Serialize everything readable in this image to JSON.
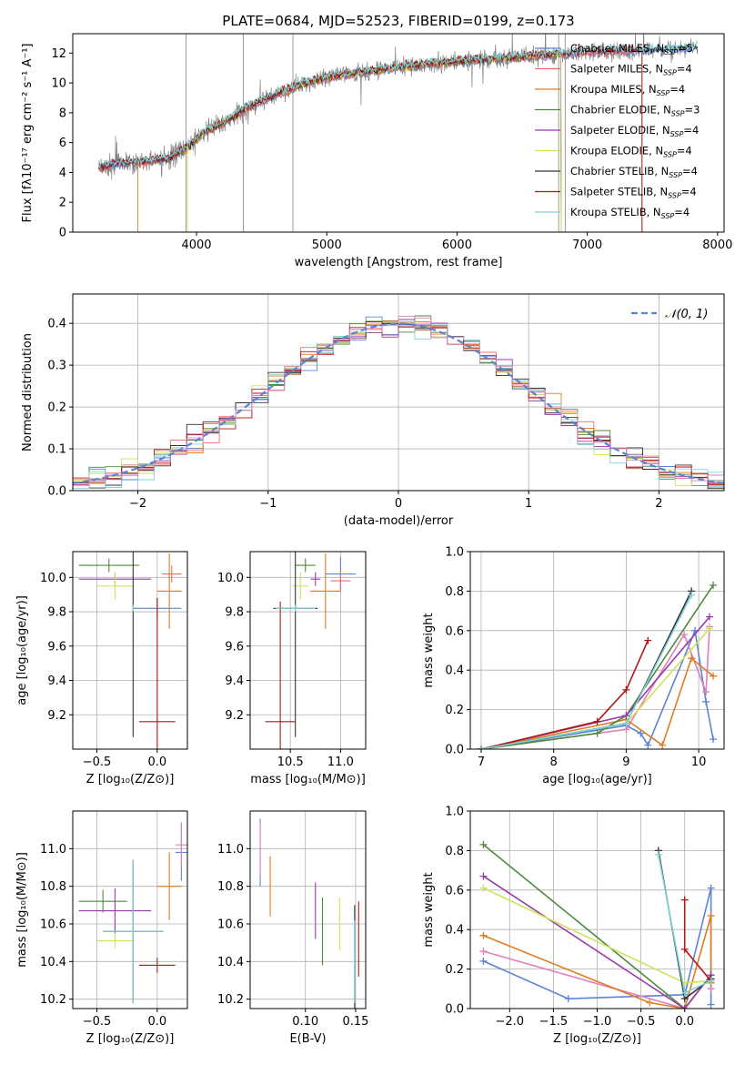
{
  "colors": {
    "chabrier_miles": "#5b84d6",
    "salpeter_miles": "#f06a6a",
    "kroupa_miles": "#e07b22",
    "chabrier_elodie": "#4f8a3c",
    "salpeter_elodie": "#9a3aaa",
    "kroupa_elodie": "#d2e05a",
    "chabrier_stelib": "#333333",
    "salpeter_stelib": "#b01818",
    "kroupa_stelib": "#7fd4d8",
    "pink": "#e07fb8",
    "normal_dash": "#5b84d6",
    "spectrum": "#808080"
  },
  "chart_data": [
    {
      "id": "spectrum",
      "type": "line",
      "title": "PLATE=0684, MJD=52523, FIBERID=0199, z=0.173",
      "xlabel": "wavelength [Angstrom, rest frame]",
      "ylabel": "Flux [fλ10⁻¹⁷ erg cm⁻² s⁻¹ A⁻¹]",
      "xlim": [
        3050,
        8050
      ],
      "ylim": [
        0,
        13.3
      ],
      "xticks": [
        4000,
        5000,
        6000,
        7000,
        8000
      ],
      "yticks": [
        0,
        2,
        4,
        6,
        8,
        10,
        12
      ],
      "grid": false,
      "legend_position": "top-right",
      "legend": [
        "Chabrier MILES, N_SSP=5",
        "Salpeter MILES, N_SSP=4",
        "Kroupa MILES, N_SSP=4",
        "Chabrier ELODIE, N_SSP=3",
        "Salpeter ELODIE, N_SSP=4",
        "Kroupa ELODIE, N_SSP=4",
        "Chabrier STELIB, N_SSP=4",
        "Salpeter STELIB, N_SSP=4",
        "Kroupa STELIB, N_SSP=4"
      ],
      "continuum": [
        [
          3250,
          4.3
        ],
        [
          3400,
          4.6
        ],
        [
          3600,
          4.7
        ],
        [
          3800,
          5.0
        ],
        [
          3950,
          5.8
        ],
        [
          4050,
          6.7
        ],
        [
          4200,
          7.3
        ],
        [
          4400,
          8.4
        ],
        [
          4600,
          9.2
        ],
        [
          4800,
          9.9
        ],
        [
          5000,
          10.4
        ],
        [
          5400,
          10.9
        ],
        [
          5800,
          11.3
        ],
        [
          6200,
          11.6
        ],
        [
          6600,
          11.8
        ],
        [
          7000,
          12.1
        ],
        [
          7400,
          12.2
        ],
        [
          7700,
          12.3
        ],
        [
          7850,
          12.4
        ]
      ]
    },
    {
      "id": "residuals",
      "type": "line",
      "title": "",
      "xlabel": "(data-model)/error",
      "ylabel": "Normed distribution",
      "xlim": [
        -2.5,
        2.5
      ],
      "ylim": [
        0,
        0.47
      ],
      "xticks": [
        -2,
        -1,
        0,
        1,
        2
      ],
      "yticks": [
        0.0,
        0.1,
        0.2,
        0.3,
        0.4
      ],
      "grid": true,
      "legend_position": "top-right",
      "legend": [
        "𝒩(0, 1)"
      ]
    },
    {
      "id": "age_vs_Z",
      "type": "scatter",
      "xlabel": "Z [log₁₀(Z/Z⊙)]",
      "ylabel": "age  [log₁₀(age/yr)]",
      "xlim": [
        -0.7,
        0.25
      ],
      "ylim": [
        9.0,
        10.15
      ],
      "xticks": [
        -0.5,
        0.0
      ],
      "yticks": [
        9.2,
        9.4,
        9.6,
        9.8,
        10.0
      ],
      "grid": true,
      "points": [
        {
          "series": "chabrier_miles",
          "x": 0.0,
          "y": 9.82,
          "xerr": 0.2,
          "yerr": 0.06
        },
        {
          "series": "salpeter_miles",
          "x": 0.12,
          "y": 10.02,
          "xerr": 0.08,
          "yerr": 0.05
        },
        {
          "series": "kroupa_miles",
          "x": 0.1,
          "y": 9.92,
          "xerr": 0.1,
          "yerr": 0.22
        },
        {
          "series": "chabrier_elodie",
          "x": -0.4,
          "y": 10.07,
          "xerr": 0.25,
          "yerr": 0.04
        },
        {
          "series": "salpeter_elodie",
          "x": -0.35,
          "y": 9.99,
          "xerr": 0.3,
          "yerr": 0.04
        },
        {
          "series": "kroupa_elodie",
          "x": -0.35,
          "y": 9.95,
          "xerr": 0.15,
          "yerr": 0.08
        },
        {
          "series": "chabrier_stelib",
          "x": -0.2,
          "y": 9.82,
          "xerr": 0.0,
          "yerr": 0.75
        },
        {
          "series": "salpeter_stelib",
          "x": 0.0,
          "y": 9.16,
          "xerr": 0.15,
          "yerr": 0.72
        },
        {
          "series": "kroupa_stelib",
          "x": -0.2,
          "y": 9.82,
          "xerr": 0.0,
          "yerr": 0.02
        }
      ]
    },
    {
      "id": "age_vs_mass",
      "type": "scatter",
      "xlabel": "mass [log₁₀(M/M⊙)]",
      "ylabel": "",
      "xlim": [
        10.1,
        11.25
      ],
      "ylim": [
        9.0,
        10.15
      ],
      "xticks": [
        10.5,
        11.0
      ],
      "yticks": [
        9.2,
        9.4,
        9.6,
        9.8,
        10.0
      ],
      "grid": true,
      "points": [
        {
          "series": "chabrier_miles",
          "x": 11.0,
          "y": 10.02,
          "xerr": 0.15,
          "yerr": 0.1
        },
        {
          "series": "salpeter_miles",
          "x": 11.0,
          "y": 9.98,
          "xerr": 0.1,
          "yerr": 0.05
        },
        {
          "series": "kroupa_miles",
          "x": 10.85,
          "y": 9.92,
          "xerr": 0.15,
          "yerr": 0.22
        },
        {
          "series": "chabrier_elodie",
          "x": 10.65,
          "y": 10.07,
          "xerr": 0.1,
          "yerr": 0.04
        },
        {
          "series": "salpeter_elodie",
          "x": 10.75,
          "y": 9.99,
          "xerr": 0.05,
          "yerr": 0.04
        },
        {
          "series": "kroupa_elodie",
          "x": 10.6,
          "y": 9.95,
          "xerr": 0.08,
          "yerr": 0.08
        },
        {
          "series": "chabrier_stelib",
          "x": 10.55,
          "y": 9.82,
          "xerr": 0.22,
          "yerr": 0.75
        },
        {
          "series": "salpeter_stelib",
          "x": 10.4,
          "y": 9.16,
          "xerr": 0.15,
          "yerr": 0.7
        },
        {
          "series": "kroupa_stelib",
          "x": 10.55,
          "y": 9.82,
          "xerr": 0.2,
          "yerr": 0.02
        }
      ]
    },
    {
      "id": "massweight_vs_age",
      "type": "line",
      "xlabel": "age  [log₁₀(age/yr)]",
      "ylabel": "mass weight",
      "xlim": [
        6.85,
        10.35
      ],
      "ylim": [
        0,
        1.0
      ],
      "xticks": [
        7,
        8,
        9,
        10
      ],
      "yticks": [
        0.0,
        0.2,
        0.4,
        0.6,
        0.8,
        1.0
      ],
      "grid": true,
      "series": [
        {
          "key": "chabrier_miles",
          "x": [
            7.0,
            9.0,
            9.2,
            9.3,
            9.95,
            10.1,
            10.2
          ],
          "y": [
            0.0,
            0.12,
            0.08,
            0.02,
            0.6,
            0.24,
            0.05
          ]
        },
        {
          "key": "pink",
          "x": [
            7.0,
            9.0,
            9.8,
            10.1,
            10.15
          ],
          "y": [
            0.0,
            0.1,
            0.58,
            0.29,
            0.62
          ]
        },
        {
          "key": "kroupa_miles",
          "x": [
            7.0,
            9.0,
            9.5,
            9.9,
            10.2
          ],
          "y": [
            0.0,
            0.15,
            0.02,
            0.46,
            0.37
          ]
        },
        {
          "key": "chabrier_elodie",
          "x": [
            7.0,
            8.6,
            9.0,
            10.2
          ],
          "y": [
            0.0,
            0.08,
            0.17,
            0.83
          ]
        },
        {
          "key": "salpeter_elodie",
          "x": [
            7.0,
            9.0,
            10.15
          ],
          "y": [
            0.0,
            0.17,
            0.67
          ]
        },
        {
          "key": "kroupa_elodie",
          "x": [
            7.0,
            9.0,
            10.15
          ],
          "y": [
            0.0,
            0.13,
            0.61
          ]
        },
        {
          "key": "chabrier_stelib",
          "x": [
            7.0,
            9.0,
            9.9
          ],
          "y": [
            0.0,
            0.13,
            0.8
          ]
        },
        {
          "key": "salpeter_stelib",
          "x": [
            7.0,
            8.6,
            9.0,
            9.3
          ],
          "y": [
            0.0,
            0.14,
            0.3,
            0.55
          ]
        },
        {
          "key": "kroupa_stelib",
          "x": [
            7.0,
            9.0,
            9.9
          ],
          "y": [
            0.0,
            0.13,
            0.78
          ]
        }
      ]
    },
    {
      "id": "mass_vs_Z",
      "type": "scatter",
      "xlabel": "Z [log₁₀(Z/Z⊙)]",
      "ylabel": "mass [log₁₀(M/M⊙)]",
      "xlim": [
        -0.7,
        0.25
      ],
      "ylim": [
        10.15,
        11.2
      ],
      "xticks": [
        -0.5,
        0.0
      ],
      "yticks": [
        10.2,
        10.4,
        10.6,
        10.8,
        11.0
      ],
      "grid": true,
      "points": [
        {
          "series": "chabrier_miles",
          "x": 0.2,
          "y": 10.98,
          "xerr": 0.05,
          "yerr": 0.15
        },
        {
          "series": "pink",
          "x": 0.2,
          "y": 11.02,
          "xerr": 0.05,
          "yerr": 0.12
        },
        {
          "series": "kroupa_miles",
          "x": 0.1,
          "y": 10.8,
          "xerr": 0.1,
          "yerr": 0.18
        },
        {
          "series": "chabrier_elodie",
          "x": -0.45,
          "y": 10.72,
          "xerr": 0.2,
          "yerr": 0.06
        },
        {
          "series": "salpeter_elodie",
          "x": -0.35,
          "y": 10.67,
          "xerr": 0.3,
          "yerr": 0.12
        },
        {
          "series": "kroupa_elodie",
          "x": -0.35,
          "y": 10.51,
          "xerr": 0.15,
          "yerr": 0.04
        },
        {
          "series": "chabrier_stelib",
          "x": -0.2,
          "y": 10.56,
          "xerr": 0.25,
          "yerr": 0.38
        },
        {
          "series": "salpeter_stelib",
          "x": 0.0,
          "y": 10.38,
          "xerr": 0.15,
          "yerr": 0.04
        },
        {
          "series": "kroupa_stelib",
          "x": -0.2,
          "y": 10.56,
          "xerr": 0.25,
          "yerr": 0.38
        }
      ]
    },
    {
      "id": "mass_vs_EBV",
      "type": "scatter",
      "xlabel": "E(B-V)",
      "ylabel": "",
      "xlim": [
        0.045,
        0.16
      ],
      "ylim": [
        10.15,
        11.2
      ],
      "xticks": [
        0.1,
        0.15
      ],
      "yticks": [
        10.2,
        10.4,
        10.6,
        10.8,
        11.0
      ],
      "grid": true,
      "points": [
        {
          "series": "chabrier_miles",
          "x": 0.055,
          "y": 10.98,
          "xerr": 0,
          "yerr": 0.18
        },
        {
          "series": "pink",
          "x": 0.055,
          "y": 11.0,
          "xerr": 0,
          "yerr": 0.14
        },
        {
          "series": "kroupa_miles",
          "x": 0.065,
          "y": 10.8,
          "xerr": 0,
          "yerr": 0.16
        },
        {
          "series": "salpeter_elodie",
          "x": 0.11,
          "y": 10.67,
          "xerr": 0,
          "yerr": 0.15
        },
        {
          "series": "chabrier_elodie",
          "x": 0.117,
          "y": 10.56,
          "xerr": 0,
          "yerr": 0.18
        },
        {
          "series": "kroupa_elodie",
          "x": 0.134,
          "y": 10.6,
          "xerr": 0,
          "yerr": 0.14
        },
        {
          "series": "chabrier_stelib",
          "x": 0.149,
          "y": 10.4,
          "xerr": 0,
          "yerr": 0.3
        },
        {
          "series": "kroupa_stelib",
          "x": 0.149,
          "y": 10.4,
          "xerr": 0,
          "yerr": 0.22
        },
        {
          "series": "salpeter_stelib",
          "x": 0.153,
          "y": 10.52,
          "xerr": 0,
          "yerr": 0.2
        }
      ]
    },
    {
      "id": "massweight_vs_Z",
      "type": "line",
      "xlabel": "Z [log₁₀(Z/Z⊙)]",
      "ylabel": "mass weight",
      "xlim": [
        -2.45,
        0.45
      ],
      "ylim": [
        0,
        1.0
      ],
      "xticks": [
        -2.0,
        -1.5,
        -1.0,
        -0.5,
        0.0
      ],
      "yticks": [
        0.0,
        0.2,
        0.4,
        0.6,
        0.8,
        1.0
      ],
      "grid": true,
      "series": [
        {
          "key": "chabrier_miles",
          "x": [
            -2.3,
            -1.33,
            0.0,
            0.3,
            0.3
          ],
          "y": [
            0.24,
            0.05,
            0.07,
            0.61,
            0.02
          ]
        },
        {
          "key": "pink",
          "x": [
            -2.3,
            0.0,
            0.3,
            0.3
          ],
          "y": [
            0.29,
            0.0,
            0.17,
            0.1
          ]
        },
        {
          "key": "kroupa_miles",
          "x": [
            -2.3,
            -0.4,
            0.0,
            0.3,
            0.3
          ],
          "y": [
            0.37,
            0.03,
            0.0,
            0.47,
            0.13
          ]
        },
        {
          "key": "chabrier_elodie",
          "x": [
            -2.3,
            0.0,
            0.3
          ],
          "y": [
            0.83,
            0.0,
            0.17
          ]
        },
        {
          "key": "salpeter_elodie",
          "x": [
            -2.3,
            0.0,
            0.3
          ],
          "y": [
            0.67,
            0.0,
            0.17
          ]
        },
        {
          "key": "kroupa_elodie",
          "x": [
            -2.3,
            0.0,
            0.3
          ],
          "y": [
            0.61,
            0.13,
            0.14
          ]
        },
        {
          "key": "chabrier_stelib",
          "x": [
            -0.3,
            0.0,
            0.3
          ],
          "y": [
            0.8,
            0.05,
            0.15
          ]
        },
        {
          "key": "salpeter_stelib",
          "x": [
            0.0,
            0.0,
            0.3
          ],
          "y": [
            0.55,
            0.3,
            0.14
          ]
        },
        {
          "key": "kroupa_stelib",
          "x": [
            -0.3,
            0.0,
            0.3
          ],
          "y": [
            0.78,
            0.08,
            0.14
          ]
        }
      ]
    }
  ]
}
